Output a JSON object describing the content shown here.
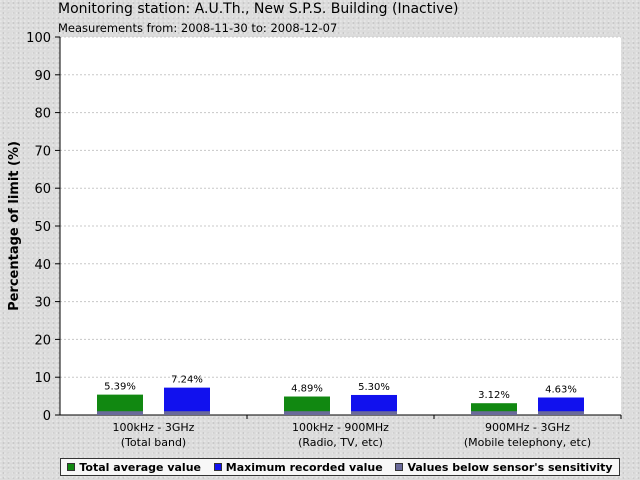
{
  "title": "Monitoring station: A.U.Th., New S.P.S. Building (Inactive)",
  "subtitle": "Measurements from: 2008-11-30 to: 2008-12-07",
  "colors": {
    "average": "#118811",
    "maximum": "#1111ee",
    "below_sensitivity": "#6a6a9a",
    "plot_background": "#ffffff"
  },
  "chart_data": {
    "type": "bar",
    "ylabel": "Percentage of limit (%)",
    "ylim": [
      0,
      100
    ],
    "yticks": [
      0,
      10,
      20,
      30,
      40,
      50,
      60,
      70,
      80,
      90,
      100
    ],
    "grid": true,
    "legend_placement": "bottom",
    "categories": [
      [
        "100kHz - 3GHz",
        "(Total band)"
      ],
      [
        "100kHz - 900MHz",
        "(Radio, TV, etc)"
      ],
      [
        "900MHz - 3GHz",
        "(Mobile telephony, etc)"
      ]
    ],
    "series": [
      {
        "name": "Total average value",
        "values": [
          5.39,
          4.89,
          3.12
        ],
        "labels": [
          "5.39%",
          "4.89%",
          "3.12%"
        ]
      },
      {
        "name": "Maximum recorded value",
        "values": [
          7.24,
          5.3,
          4.63
        ],
        "labels": [
          "7.24%",
          "5.30%",
          "4.63%"
        ]
      }
    ],
    "sensor_sensitivity": {
      "name": "Values below sensor's sensitivity",
      "value": 1
    }
  }
}
